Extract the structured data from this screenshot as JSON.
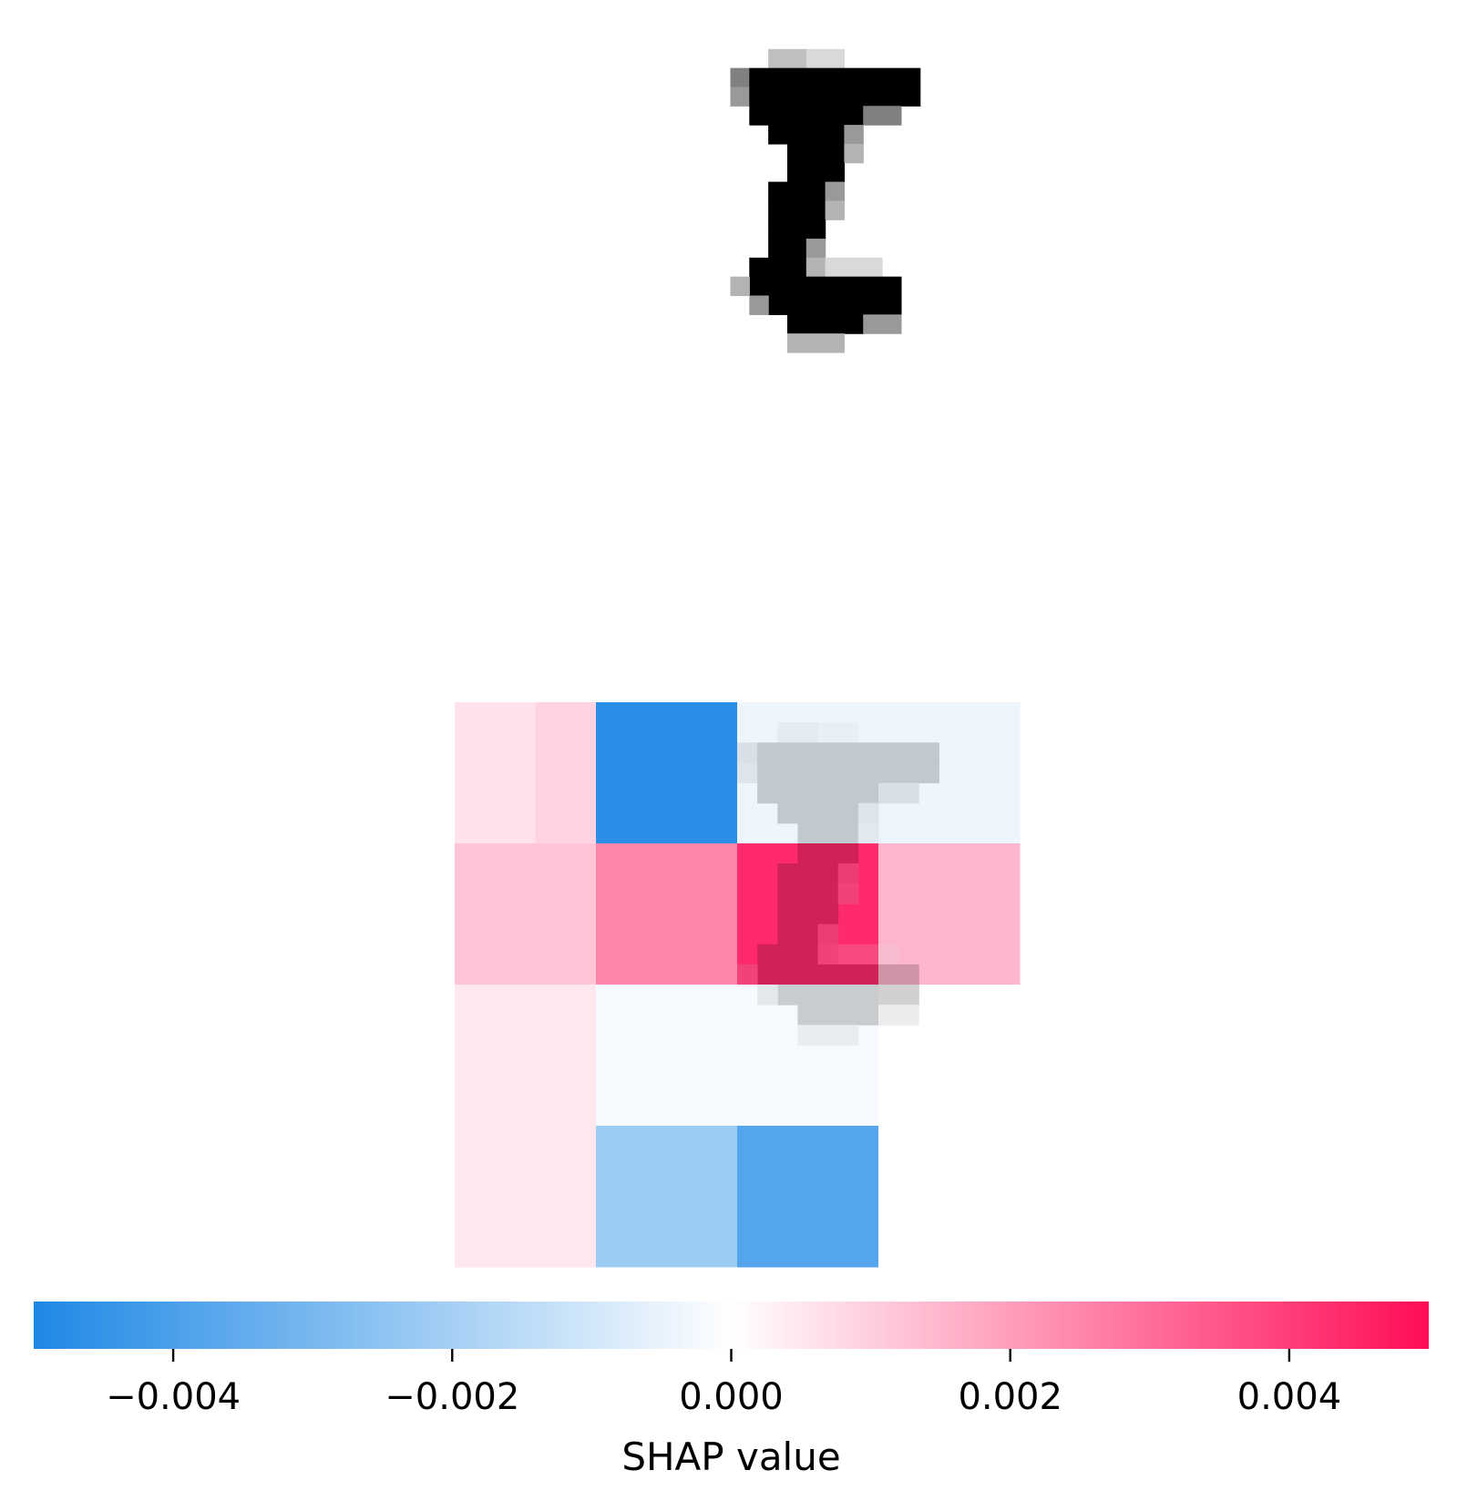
{
  "chart_data": {
    "type": "heatmap",
    "input_image": {
      "grid_size": [
        28,
        28
      ],
      "description_digit": "7",
      "ink_rows": [
        [
          1,
          16,
          17,
          0.25
        ],
        [
          1,
          18,
          19,
          0.15
        ],
        [
          2,
          14,
          14,
          0.5
        ],
        [
          2,
          15,
          23,
          1.0
        ],
        [
          3,
          14,
          14,
          0.4
        ],
        [
          3,
          15,
          23,
          1.0
        ],
        [
          4,
          15,
          20,
          1.0
        ],
        [
          4,
          21,
          22,
          0.5
        ],
        [
          5,
          16,
          19,
          1.0
        ],
        [
          5,
          20,
          20,
          0.4
        ],
        [
          6,
          17,
          19,
          1.0
        ],
        [
          6,
          20,
          20,
          0.3
        ],
        [
          7,
          17,
          19,
          1.0
        ],
        [
          8,
          16,
          18,
          1.0
        ],
        [
          8,
          19,
          19,
          0.4
        ],
        [
          9,
          16,
          18,
          1.0
        ],
        [
          9,
          19,
          19,
          0.3
        ],
        [
          10,
          16,
          18,
          1.0
        ],
        [
          11,
          16,
          17,
          1.0
        ],
        [
          11,
          18,
          18,
          0.4
        ],
        [
          12,
          15,
          17,
          1.0
        ],
        [
          12,
          18,
          18,
          0.3
        ],
        [
          12,
          19,
          21,
          0.15
        ],
        [
          13,
          15,
          22,
          1.0
        ],
        [
          13,
          14,
          14,
          0.3
        ],
        [
          14,
          16,
          22,
          1.0
        ],
        [
          14,
          15,
          15,
          0.4
        ],
        [
          15,
          17,
          20,
          1.0
        ],
        [
          15,
          21,
          22,
          0.4
        ],
        [
          16,
          17,
          19,
          0.3
        ]
      ]
    },
    "shap_map": {
      "cells": [
        {
          "x0": 0,
          "x1": 4,
          "y0": 0,
          "y1": 7,
          "value": 0.0006
        },
        {
          "x0": 4,
          "x1": 7,
          "y0": 0,
          "y1": 7,
          "value": 0.0009
        },
        {
          "x0": 7,
          "x1": 14,
          "y0": 0,
          "y1": 7,
          "value": -0.0047
        },
        {
          "x0": 14,
          "x1": 21,
          "y0": 0,
          "y1": 7,
          "value": -0.0004
        },
        {
          "x0": 21,
          "x1": 28,
          "y0": 0,
          "y1": 7,
          "value": -0.0004
        },
        {
          "x0": 0,
          "x1": 7,
          "y0": 7,
          "y1": 14,
          "value": 0.0012
        },
        {
          "x0": 7,
          "x1": 14,
          "y0": 7,
          "y1": 14,
          "value": 0.0025
        },
        {
          "x0": 14,
          "x1": 21,
          "y0": 7,
          "y1": 14,
          "value": 0.0044
        },
        {
          "x0": 21,
          "x1": 28,
          "y0": 7,
          "y1": 14,
          "value": 0.0015
        },
        {
          "x0": 0,
          "x1": 7,
          "y0": 14,
          "y1": 28,
          "value": 0.0005
        },
        {
          "x0": 7,
          "x1": 14,
          "y0": 14,
          "y1": 21,
          "value": -0.0002
        },
        {
          "x0": 14,
          "x1": 21,
          "y0": 14,
          "y1": 21,
          "value": -0.0002
        },
        {
          "x0": 7,
          "x1": 14,
          "y0": 21,
          "y1": 28,
          "value": -0.0022
        },
        {
          "x0": 14,
          "x1": 21,
          "y0": 21,
          "y1": 28,
          "value": -0.0038
        },
        {
          "x0": 21,
          "x1": 28,
          "y0": 14,
          "y1": 28,
          "value": 0.0
        }
      ]
    },
    "colorbar": {
      "vmin": -0.005,
      "vmax": 0.005,
      "orientation": "horizontal",
      "ticks": [
        -0.004,
        -0.002,
        0.0,
        0.002,
        0.004
      ],
      "tick_labels": [
        "−0.004",
        "−0.002",
        "0.000",
        "0.002",
        "0.004"
      ],
      "label": "SHAP value",
      "neg_color": "#1e88e5",
      "mid_color": "#ffffff",
      "pos_color": "#ff0d57"
    }
  }
}
